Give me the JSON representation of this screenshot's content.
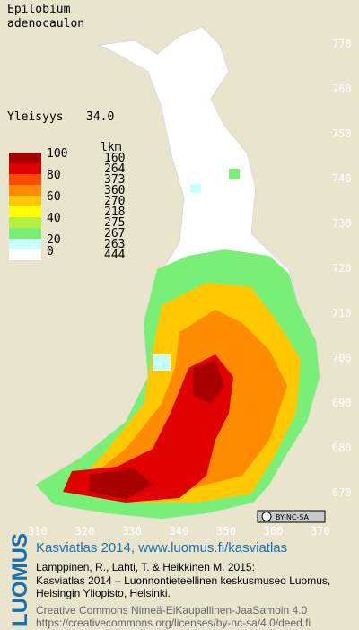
{
  "header": {
    "species": [
      "Epilobium",
      "adenocaulon"
    ],
    "frequency_label": "Yleisyys",
    "frequency": "34.0"
  },
  "legend": {
    "count_title": "lkm",
    "scale_labels": [
      "100",
      "80",
      "60",
      "40",
      "20",
      "0"
    ],
    "classes": [
      {
        "color": "#a80000",
        "count": "160"
      },
      {
        "color": "#e00000",
        "count": "264"
      },
      {
        "color": "#ff4a00",
        "count": "373"
      },
      {
        "color": "#ff8c00",
        "count": "360"
      },
      {
        "color": "#ffc800",
        "count": "270"
      },
      {
        "color": "#ffff00",
        "count": "218"
      },
      {
        "color": "#b8f040",
        "count": "275"
      },
      {
        "color": "#78f078",
        "count": "267"
      },
      {
        "color": "#c8ffff",
        "count": "263"
      },
      {
        "color": "#ffffff",
        "count": "444"
      }
    ]
  },
  "axes": {
    "north": [
      "770",
      "760",
      "750",
      "740",
      "730",
      "720",
      "710",
      "700",
      "690",
      "680",
      "670"
    ],
    "east": [
      "310",
      "320",
      "330",
      "340",
      "350",
      "360",
      "370"
    ]
  },
  "badge": "BY-NC-SA",
  "footer": {
    "brand": "LUOMUS",
    "headline": "Kasviatlas 2014, www.luomus.fi/kasviatlas",
    "citation": [
      "Lamppinen, R., Lahti, T. & Heikkinen M. 2015:",
      "Kasviatlas 2014 – Luonnontieteellinen keskusmuseo Luomus,",
      "Helsingin Yliopisto, Helsinki."
    ],
    "license": [
      "Creative Commons Nimeä-EiKaupallinen-JaaSamoin 4.0",
      "https://creativecommons.org/licenses/by-nc-sa/4.0/deed.fi"
    ]
  }
}
